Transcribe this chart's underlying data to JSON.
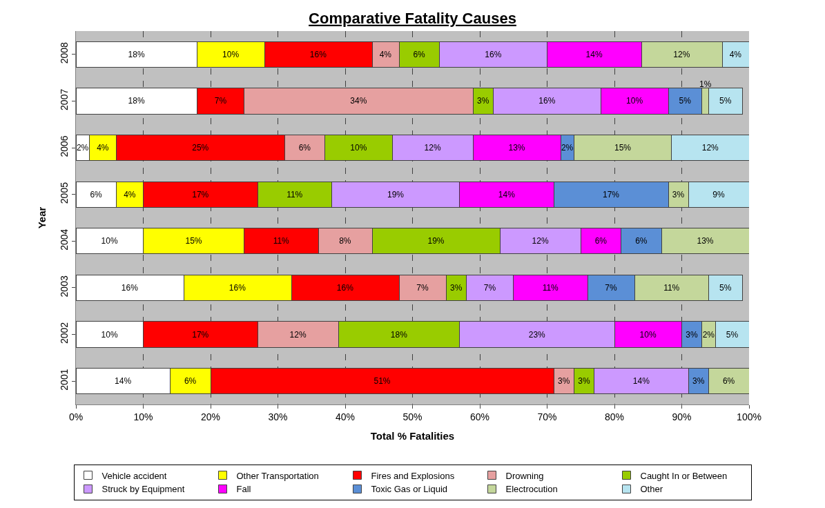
{
  "chart_data": {
    "type": "bar",
    "orientation": "horizontal",
    "stacked": true,
    "title": "Comparative Fatality Causes",
    "xlabel": "Total % Fatalities",
    "ylabel": "Year",
    "categories": [
      "2008",
      "2007",
      "2006",
      "2005",
      "2004",
      "2003",
      "2002",
      "2001"
    ],
    "xlim": [
      0,
      100
    ],
    "xticks": [
      {
        "value": 0,
        "label": "0%"
      },
      {
        "value": 10,
        "label": "10%"
      },
      {
        "value": 20,
        "label": "20%"
      },
      {
        "value": 30,
        "label": "30%"
      },
      {
        "value": 40,
        "label": "40%"
      },
      {
        "value": 50,
        "label": "50%"
      },
      {
        "value": 60,
        "label": "60%"
      },
      {
        "value": 70,
        "label": "70%"
      },
      {
        "value": 80,
        "label": "80%"
      },
      {
        "value": 90,
        "label": "90%"
      },
      {
        "value": 100,
        "label": "100%"
      }
    ],
    "grid": "x",
    "legend": "bottom",
    "series": [
      {
        "name": "Vehicle accident",
        "color": "#ffffff",
        "values": [
          18,
          18,
          2,
          6,
          10,
          16,
          10,
          14
        ],
        "value_labels": [
          "18%",
          "18%",
          "2%",
          "6%",
          "10%",
          "16%",
          "10%",
          "14%"
        ]
      },
      {
        "name": "Other Transportation",
        "color": "#ffff00",
        "values": [
          10,
          null,
          4,
          4,
          15,
          16,
          null,
          6
        ],
        "value_labels": [
          "10%",
          null,
          "4%",
          "4%",
          "15%",
          "16%",
          null,
          "6%"
        ]
      },
      {
        "name": "Fires and Explosions",
        "color": "#ff0000",
        "values": [
          16,
          7,
          25,
          17,
          11,
          16,
          17,
          51
        ],
        "value_labels": [
          "16%",
          "7%",
          "25%",
          "17%",
          "11%",
          "16%",
          "17%",
          "51%"
        ]
      },
      {
        "name": "Drowning",
        "color": "#e6a0a0",
        "values": [
          4,
          34,
          6,
          null,
          8,
          7,
          12,
          3
        ],
        "value_labels": [
          "4%",
          "34%",
          "6%",
          null,
          "8%",
          "7%",
          "12%",
          "3%"
        ]
      },
      {
        "name": "Caught In or Between",
        "color": "#99cc00",
        "values": [
          6,
          3,
          10,
          11,
          19,
          3,
          18,
          3
        ],
        "value_labels": [
          "6%",
          "3%",
          "10%",
          "11%",
          "19%",
          "3%",
          "18%",
          "3%"
        ]
      },
      {
        "name": "Struck by Equipment",
        "color": "#cc99ff",
        "values": [
          16,
          16,
          12,
          19,
          12,
          7,
          23,
          14
        ],
        "value_labels": [
          "16%",
          "16%",
          "12%",
          "19%",
          "12%",
          "7%",
          "23%",
          "14%"
        ]
      },
      {
        "name": "Fall",
        "color": "#ff00ff",
        "values": [
          14,
          10,
          13,
          14,
          6,
          11,
          10,
          null
        ],
        "value_labels": [
          "14%",
          "10%",
          "13%",
          "14%",
          "6%",
          "11%",
          "10%",
          null
        ]
      },
      {
        "name": "Toxic Gas or Liquid",
        "color": "#5b8fd6",
        "values": [
          null,
          5,
          2,
          17,
          6,
          7,
          3,
          3
        ],
        "value_labels": [
          null,
          "5%",
          "2%",
          "17%",
          "6%",
          "7%",
          "3%",
          "3%"
        ]
      },
      {
        "name": "Electrocution",
        "color": "#c4d79b",
        "values": [
          12,
          1,
          14.5,
          3,
          13,
          11,
          2,
          6
        ],
        "value_labels": [
          "12%",
          "1%",
          "15%",
          "3%",
          "13%",
          "11%",
          "2%",
          "6%"
        ]
      },
      {
        "name": "Other",
        "color": "#b7e4f0",
        "values": [
          4,
          5,
          11.5,
          9,
          null,
          5,
          5,
          null
        ],
        "value_labels": [
          "4%",
          "5%",
          "12%",
          "9%",
          null,
          "5%",
          "5%",
          null
        ]
      }
    ]
  }
}
